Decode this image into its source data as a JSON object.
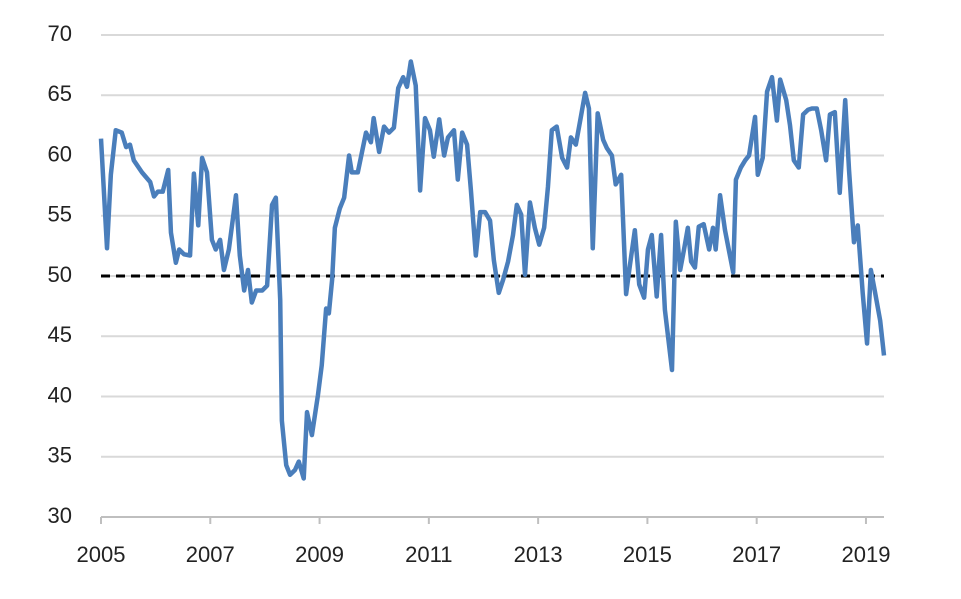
{
  "chart_data": {
    "type": "line",
    "x": [
      2005.0,
      2005.11,
      2005.18,
      2005.27,
      2005.38,
      2005.46,
      2005.53,
      2005.6,
      2005.75,
      2005.9,
      2005.97,
      2006.04,
      2006.13,
      2006.23,
      2006.28,
      2006.37,
      2006.43,
      2006.52,
      2006.63,
      2006.7,
      2006.78,
      2006.85,
      2006.94,
      2007.03,
      2007.1,
      2007.18,
      2007.25,
      2007.34,
      2007.47,
      2007.54,
      2007.62,
      2007.69,
      2007.76,
      2007.84,
      2007.95,
      2008.04,
      2008.13,
      2008.2,
      2008.28,
      2008.31,
      2008.39,
      2008.46,
      2008.55,
      2008.62,
      2008.71,
      2008.77,
      2008.86,
      2008.97,
      2009.04,
      2009.12,
      2009.17,
      2009.23,
      2009.28,
      2009.37,
      2009.45,
      2009.54,
      2009.59,
      2009.7,
      2009.85,
      2009.94,
      2009.99,
      2010.09,
      2010.18,
      2010.27,
      2010.36,
      2010.44,
      2010.53,
      2010.6,
      2010.67,
      2010.76,
      2010.84,
      2010.93,
      2011.02,
      2011.09,
      2011.19,
      2011.28,
      2011.35,
      2011.46,
      2011.53,
      2011.61,
      2011.7,
      2011.77,
      2011.86,
      2011.94,
      2012.03,
      2012.12,
      2012.19,
      2012.28,
      2012.36,
      2012.45,
      2012.54,
      2012.61,
      2012.69,
      2012.76,
      2012.85,
      2012.94,
      2013.02,
      2013.11,
      2013.18,
      2013.25,
      2013.34,
      2013.44,
      2013.53,
      2013.6,
      2013.69,
      2013.77,
      2013.86,
      2013.93,
      2014.0,
      2014.09,
      2014.19,
      2014.26,
      2014.35,
      2014.42,
      2014.52,
      2014.61,
      2014.68,
      2014.77,
      2014.85,
      2014.94,
      2015.01,
      2015.08,
      2015.17,
      2015.25,
      2015.32,
      2015.45,
      2015.52,
      2015.6,
      2015.67,
      2015.74,
      2015.8,
      2015.87,
      2015.94,
      2016.03,
      2016.13,
      2016.2,
      2016.25,
      2016.33,
      2016.42,
      2016.57,
      2016.62,
      2016.71,
      2016.79,
      2016.86,
      2016.97,
      2017.02,
      2017.11,
      2017.19,
      2017.28,
      2017.37,
      2017.43,
      2017.54,
      2017.61,
      2017.68,
      2017.77,
      2017.85,
      2017.94,
      2018.01,
      2018.1,
      2018.18,
      2018.27,
      2018.34,
      2018.43,
      2018.52,
      2018.62,
      2018.69,
      2018.78,
      2018.85,
      2018.94,
      2019.02,
      2019.09,
      2019.16,
      2019.26,
      2019.33
    ],
    "series": [
      {
        "color": "#4a7ebb",
        "values": [
          61.4,
          52.3,
          58.4,
          62.1,
          61.9,
          60.7,
          60.9,
          59.6,
          58.6,
          57.8,
          56.6,
          57.0,
          57.0,
          58.8,
          53.6,
          51.1,
          52.2,
          51.8,
          51.7,
          58.5,
          54.2,
          59.8,
          58.6,
          53.0,
          52.2,
          53.0,
          50.5,
          52.2,
          56.7,
          51.7,
          48.8,
          50.5,
          47.8,
          48.8,
          48.8,
          49.2,
          55.9,
          56.5,
          48.0,
          38.0,
          34.3,
          33.5,
          33.9,
          34.6,
          33.2,
          38.7,
          36.8,
          40.1,
          42.6,
          47.3,
          46.9,
          49.7,
          54.0,
          55.6,
          56.5,
          60.0,
          58.6,
          58.6,
          61.9,
          61.1,
          63.1,
          60.3,
          62.4,
          61.9,
          62.3,
          65.6,
          66.5,
          65.7,
          67.8,
          65.8,
          57.1,
          63.1,
          62.1,
          59.9,
          63.0,
          60.0,
          61.5,
          62.1,
          58.0,
          61.9,
          60.9,
          57.1,
          51.7,
          55.3,
          55.3,
          54.6,
          51.3,
          48.6,
          49.7,
          51.2,
          53.4,
          55.9,
          55.1,
          50.1,
          56.1,
          54.0,
          52.6,
          54.0,
          57.4,
          62.1,
          62.4,
          59.8,
          59.0,
          61.5,
          60.9,
          62.9,
          65.2,
          63.9,
          52.3,
          63.5,
          61.3,
          60.6,
          60.0,
          57.6,
          58.4,
          48.5,
          50.9,
          53.8,
          49.3,
          48.2,
          52.2,
          53.4,
          48.3,
          53.4,
          47.2,
          42.2,
          54.5,
          50.5,
          52.2,
          54.0,
          51.2,
          50.7,
          54.1,
          54.3,
          52.2,
          54.0,
          52.2,
          56.7,
          53.8,
          50.3,
          58.0,
          59.0,
          59.6,
          60.0,
          63.2,
          58.4,
          59.8,
          65.3,
          66.5,
          62.9,
          66.3,
          64.6,
          62.5,
          59.6,
          59.0,
          63.4,
          63.8,
          63.9,
          63.9,
          62.1,
          59.6,
          63.4,
          63.6,
          56.9,
          64.6,
          58.8,
          52.8,
          54.2,
          48.6,
          44.4,
          50.5,
          48.8,
          46.3,
          43.4
        ]
      }
    ],
    "xlim": [
      2005,
      2019.33
    ],
    "xticks": [
      2005,
      2007,
      2009,
      2011,
      2013,
      2015,
      2017,
      2019
    ],
    "ylim": [
      30,
      70
    ],
    "yticks": [
      30,
      35,
      40,
      45,
      50,
      55,
      60,
      65,
      70
    ],
    "grid": true,
    "reference_line": 50
  }
}
